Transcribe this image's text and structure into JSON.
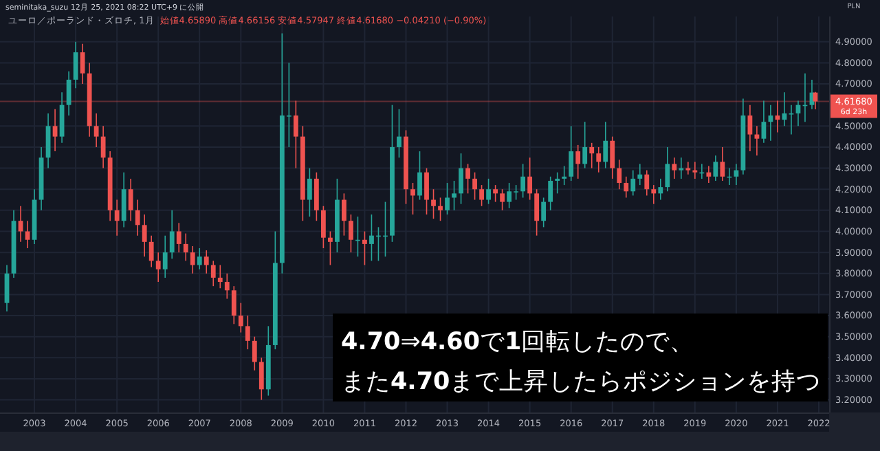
{
  "chart_data": {
    "type": "candlestick",
    "title": "ユーロ／ポーランド・ズロチ, 1月",
    "subtitle": "始値4.65890 高値4.66156 安値4.57947 終値4.61680 −0.04210 (−0.90%)",
    "annotations": [
      "seminitaka_suzu 12月 25, 2021 08:22 UTC+9 に公開",
      "PLN",
      "6d 23h",
      "4.70⇒4.60で1回転したので、",
      "また4.70まで上昇したらポジションを持つ"
    ],
    "x": [
      "2002-05",
      "2002-07",
      "2002-09",
      "2002-11",
      "2003-01",
      "2003-03",
      "2003-05",
      "2003-07",
      "2003-09",
      "2003-11",
      "2004-01",
      "2004-03",
      "2004-05",
      "2004-07",
      "2004-09",
      "2004-11",
      "2005-01",
      "2005-03",
      "2005-05",
      "2005-07",
      "2005-09",
      "2005-11",
      "2006-01",
      "2006-03",
      "2006-05",
      "2006-07",
      "2006-09",
      "2006-11",
      "2007-01",
      "2007-03",
      "2007-05",
      "2007-07",
      "2007-09",
      "2007-11",
      "2008-01",
      "2008-03",
      "2008-05",
      "2008-07",
      "2008-09",
      "2008-11",
      "2009-01",
      "2009-03",
      "2009-05",
      "2009-07",
      "2009-09",
      "2009-11",
      "2010-01",
      "2010-03",
      "2010-05",
      "2010-07",
      "2010-09",
      "2010-11",
      "2011-01",
      "2011-03",
      "2011-05",
      "2011-07",
      "2011-09",
      "2011-11",
      "2012-01",
      "2012-03",
      "2012-05",
      "2012-07",
      "2012-09",
      "2012-11",
      "2013-01",
      "2013-03",
      "2013-05",
      "2013-07",
      "2013-09",
      "2013-11",
      "2014-01",
      "2014-03",
      "2014-05",
      "2014-07",
      "2014-09",
      "2014-11",
      "2015-01",
      "2015-03",
      "2015-05",
      "2015-07",
      "2015-09",
      "2015-11",
      "2016-01",
      "2016-03",
      "2016-05",
      "2016-07",
      "2016-09",
      "2016-11",
      "2017-01",
      "2017-03",
      "2017-05",
      "2017-07",
      "2017-09",
      "2017-11",
      "2018-01",
      "2018-03",
      "2018-05",
      "2018-07",
      "2018-09",
      "2018-11",
      "2019-01",
      "2019-03",
      "2019-05",
      "2019-07",
      "2019-09",
      "2019-11",
      "2020-01",
      "2020-03",
      "2020-05",
      "2020-07",
      "2020-09",
      "2020-11",
      "2021-01",
      "2021-03",
      "2021-05",
      "2021-07",
      "2021-09",
      "2021-11",
      "2021-12"
    ],
    "ohlc": [
      [
        3.66,
        3.84,
        3.62,
        3.8
      ],
      [
        3.8,
        4.1,
        3.78,
        4.05
      ],
      [
        4.05,
        4.12,
        3.95,
        4.0
      ],
      [
        4.0,
        4.05,
        3.92,
        3.96
      ],
      [
        3.96,
        4.2,
        3.94,
        4.15
      ],
      [
        4.15,
        4.4,
        4.1,
        4.35
      ],
      [
        4.35,
        4.56,
        4.3,
        4.5
      ],
      [
        4.5,
        4.58,
        4.38,
        4.45
      ],
      [
        4.45,
        4.66,
        4.42,
        4.6
      ],
      [
        4.6,
        4.76,
        4.55,
        4.72
      ],
      [
        4.72,
        4.9,
        4.68,
        4.85
      ],
      [
        4.85,
        4.89,
        4.7,
        4.75
      ],
      [
        4.75,
        4.8,
        4.45,
        4.5
      ],
      [
        4.5,
        4.56,
        4.4,
        4.45
      ],
      [
        4.45,
        4.5,
        4.3,
        4.35
      ],
      [
        4.35,
        4.38,
        4.05,
        4.1
      ],
      [
        4.1,
        4.15,
        3.98,
        4.05
      ],
      [
        4.05,
        4.28,
        4.02,
        4.2
      ],
      [
        4.2,
        4.25,
        4.05,
        4.1
      ],
      [
        4.1,
        4.15,
        3.98,
        4.03
      ],
      [
        4.03,
        4.08,
        3.88,
        3.95
      ],
      [
        3.95,
        3.98,
        3.83,
        3.86
      ],
      [
        3.86,
        3.9,
        3.76,
        3.82
      ],
      [
        3.82,
        3.98,
        3.78,
        3.9
      ],
      [
        3.9,
        4.1,
        3.87,
        4.0
      ],
      [
        4.0,
        4.04,
        3.9,
        3.94
      ],
      [
        3.94,
        3.99,
        3.86,
        3.9
      ],
      [
        3.9,
        3.93,
        3.8,
        3.84
      ],
      [
        3.84,
        3.92,
        3.82,
        3.88
      ],
      [
        3.88,
        3.91,
        3.8,
        3.84
      ],
      [
        3.84,
        3.86,
        3.74,
        3.78
      ],
      [
        3.78,
        3.84,
        3.73,
        3.76
      ],
      [
        3.76,
        3.8,
        3.68,
        3.72
      ],
      [
        3.72,
        3.74,
        3.56,
        3.6
      ],
      [
        3.6,
        3.66,
        3.52,
        3.55
      ],
      [
        3.55,
        3.6,
        3.44,
        3.48
      ],
      [
        3.48,
        3.5,
        3.34,
        3.38
      ],
      [
        3.38,
        3.4,
        3.2,
        3.25
      ],
      [
        3.25,
        3.55,
        3.22,
        3.46
      ],
      [
        3.46,
        4.0,
        3.44,
        3.85
      ],
      [
        3.85,
        4.94,
        3.8,
        4.55
      ],
      [
        4.55,
        4.8,
        4.4,
        4.55
      ],
      [
        4.55,
        4.62,
        4.3,
        4.45
      ],
      [
        4.45,
        4.5,
        4.05,
        4.15
      ],
      [
        4.15,
        4.3,
        4.07,
        4.25
      ],
      [
        4.25,
        4.28,
        4.05,
        4.1
      ],
      [
        4.1,
        4.12,
        3.92,
        3.97
      ],
      [
        3.97,
        4.0,
        3.84,
        3.95
      ],
      [
        3.95,
        4.25,
        3.9,
        4.15
      ],
      [
        4.15,
        4.18,
        3.98,
        4.05
      ],
      [
        4.05,
        4.08,
        3.9,
        3.96
      ],
      [
        3.96,
        4.07,
        3.88,
        3.96
      ],
      [
        3.96,
        4.0,
        3.84,
        3.94
      ],
      [
        3.94,
        4.08,
        3.86,
        3.98
      ],
      [
        3.98,
        4.02,
        3.86,
        3.98
      ],
      [
        3.98,
        4.14,
        3.88,
        3.98
      ],
      [
        3.98,
        4.6,
        3.95,
        4.4
      ],
      [
        4.4,
        4.58,
        4.35,
        4.45
      ],
      [
        4.45,
        4.48,
        4.13,
        4.2
      ],
      [
        4.2,
        4.23,
        4.08,
        4.17
      ],
      [
        4.17,
        4.38,
        4.15,
        4.28
      ],
      [
        4.28,
        4.3,
        4.08,
        4.15
      ],
      [
        4.15,
        4.2,
        4.06,
        4.12
      ],
      [
        4.12,
        4.16,
        4.05,
        4.1
      ],
      [
        4.1,
        4.23,
        4.08,
        4.16
      ],
      [
        4.16,
        4.24,
        4.1,
        4.18
      ],
      [
        4.18,
        4.37,
        4.13,
        4.3
      ],
      [
        4.3,
        4.32,
        4.18,
        4.25
      ],
      [
        4.25,
        4.28,
        4.15,
        4.2
      ],
      [
        4.2,
        4.22,
        4.12,
        4.15
      ],
      [
        4.15,
        4.25,
        4.13,
        4.2
      ],
      [
        4.2,
        4.22,
        4.14,
        4.18
      ],
      [
        4.18,
        4.2,
        4.1,
        4.14
      ],
      [
        4.14,
        4.23,
        4.11,
        4.19
      ],
      [
        4.19,
        4.22,
        4.15,
        4.19
      ],
      [
        4.19,
        4.32,
        4.16,
        4.26
      ],
      [
        4.26,
        4.35,
        4.15,
        4.18
      ],
      [
        4.18,
        4.2,
        3.98,
        4.05
      ],
      [
        4.05,
        4.16,
        4.02,
        4.14
      ],
      [
        4.14,
        4.26,
        4.1,
        4.24
      ],
      [
        4.24,
        4.28,
        4.18,
        4.25
      ],
      [
        4.25,
        4.31,
        4.22,
        4.26
      ],
      [
        4.26,
        4.5,
        4.24,
        4.38
      ],
      [
        4.38,
        4.41,
        4.25,
        4.32
      ],
      [
        4.32,
        4.52,
        4.3,
        4.4
      ],
      [
        4.4,
        4.42,
        4.3,
        4.37
      ],
      [
        4.37,
        4.4,
        4.28,
        4.33
      ],
      [
        4.33,
        4.52,
        4.3,
        4.43
      ],
      [
        4.43,
        4.45,
        4.25,
        4.3
      ],
      [
        4.3,
        4.34,
        4.2,
        4.23
      ],
      [
        4.23,
        4.26,
        4.16,
        4.19
      ],
      [
        4.19,
        4.29,
        4.17,
        4.25
      ],
      [
        4.25,
        4.32,
        4.22,
        4.27
      ],
      [
        4.27,
        4.29,
        4.17,
        4.2
      ],
      [
        4.2,
        4.22,
        4.13,
        4.18
      ],
      [
        4.18,
        4.25,
        4.15,
        4.21
      ],
      [
        4.21,
        4.4,
        4.19,
        4.32
      ],
      [
        4.32,
        4.35,
        4.25,
        4.29
      ],
      [
        4.29,
        4.35,
        4.25,
        4.3
      ],
      [
        4.3,
        4.33,
        4.27,
        4.29
      ],
      [
        4.29,
        4.33,
        4.25,
        4.28
      ],
      [
        4.28,
        4.32,
        4.25,
        4.28
      ],
      [
        4.28,
        4.31,
        4.23,
        4.26
      ],
      [
        4.26,
        4.36,
        4.24,
        4.33
      ],
      [
        4.33,
        4.4,
        4.24,
        4.26
      ],
      [
        4.26,
        4.3,
        4.22,
        4.26
      ],
      [
        4.26,
        4.32,
        4.22,
        4.29
      ],
      [
        4.29,
        4.63,
        4.27,
        4.55
      ],
      [
        4.55,
        4.6,
        4.38,
        4.46
      ],
      [
        4.46,
        4.5,
        4.36,
        4.44
      ],
      [
        4.44,
        4.62,
        4.42,
        4.52
      ],
      [
        4.52,
        4.6,
        4.43,
        4.55
      ],
      [
        4.55,
        4.62,
        4.47,
        4.53
      ],
      [
        4.53,
        4.66,
        4.5,
        4.56
      ],
      [
        4.56,
        4.6,
        4.46,
        4.56
      ],
      [
        4.56,
        4.62,
        4.5,
        4.6
      ],
      [
        4.6,
        4.75,
        4.52,
        4.6
      ],
      [
        4.6,
        4.72,
        4.58,
        4.6589
      ],
      [
        4.6589,
        4.66156,
        4.57947,
        4.6168
      ]
    ],
    "xlim": [
      "2002-03",
      "2022-04"
    ],
    "xticks": [
      "2003",
      "2004",
      "2005",
      "2006",
      "2007",
      "2008",
      "2009",
      "2010",
      "2011",
      "2012",
      "2013",
      "2014",
      "2015",
      "2016",
      "2017",
      "2018",
      "2019",
      "2020",
      "2021",
      "2022"
    ],
    "ylim": [
      3.14,
      5.02
    ],
    "yticks": [
      {
        "value": 3.2,
        "label": "3.20000"
      },
      {
        "value": 3.3,
        "label": "3.30000"
      },
      {
        "value": 3.4,
        "label": "3.40000"
      },
      {
        "value": 3.5,
        "label": "3.50000"
      },
      {
        "value": 3.6,
        "label": "3.60000"
      },
      {
        "value": 3.7,
        "label": "3.70000"
      },
      {
        "value": 3.8,
        "label": "3.80000"
      },
      {
        "value": 3.9,
        "label": "3.90000"
      },
      {
        "value": 4.0,
        "label": "4.00000"
      },
      {
        "value": 4.1,
        "label": "4.10000"
      },
      {
        "value": 4.2,
        "label": "4.20000"
      },
      {
        "value": 4.3,
        "label": "4.30000"
      },
      {
        "value": 4.4,
        "label": "4.40000"
      },
      {
        "value": 4.5,
        "label": "4.50000"
      },
      {
        "value": 4.7,
        "label": "4.70000"
      },
      {
        "value": 4.8,
        "label": "4.80000"
      },
      {
        "value": 4.9,
        "label": "4.90000"
      }
    ],
    "ref_lines": [
      {
        "axis": "y",
        "value": 4.6168,
        "label": "4.61680",
        "color": "#ef5350"
      }
    ],
    "grid": true
  }
}
